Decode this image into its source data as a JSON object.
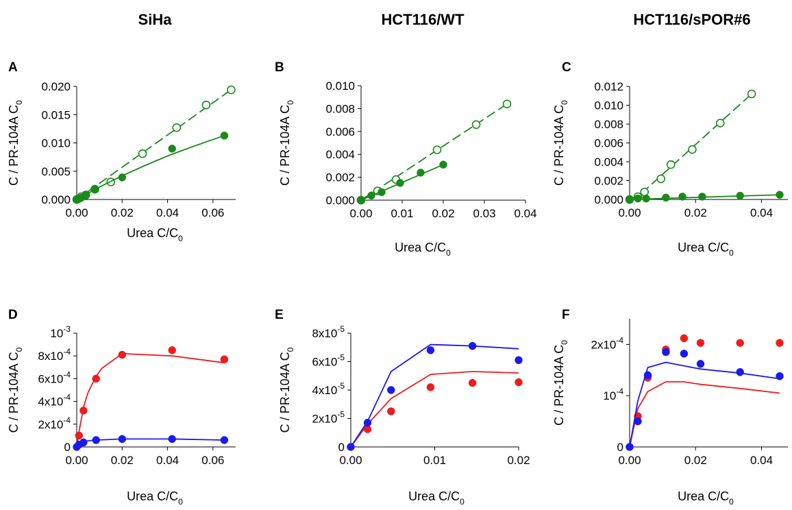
{
  "column_titles": [
    "SiHa",
    "HCT116/WT",
    "HCT116/sPOR#6"
  ],
  "colors": {
    "green": "#1a8a1a",
    "red": "#ee1c1c",
    "blue": "#1a1aee"
  },
  "chart_data": [
    {
      "id": "A",
      "type": "scatter",
      "title": "SiHa",
      "xlabel_main": "Urea C/C",
      "xlabel_sub": "0",
      "ylabel_main": "C / PR-104A C",
      "ylabel_sub": "0",
      "xlim": [
        0,
        0.07
      ],
      "ylim": [
        0,
        0.02
      ],
      "xticks": [
        0,
        0.02,
        0.04,
        0.06
      ],
      "xtick_labels": [
        "0.00",
        "0.02",
        "0.04",
        "0.06"
      ],
      "yticks": [
        0,
        0.005,
        0.01,
        0.015,
        0.02
      ],
      "ytick_labels": [
        "0.000",
        "0.005",
        "0.010",
        "0.015",
        "0.020"
      ],
      "series": [
        {
          "name": "open",
          "marker": "open",
          "color": "green",
          "line": "dashed",
          "x": [
            0.0,
            0.002,
            0.004,
            0.008,
            0.015,
            0.029,
            0.044,
            0.057,
            0.068
          ],
          "y": [
            0.0,
            0.0005,
            0.0008,
            0.0018,
            0.0031,
            0.0081,
            0.0127,
            0.0167,
            0.0194
          ],
          "fit_x": [
            0.0,
            0.068
          ],
          "fit_y": [
            0.0,
            0.0194
          ]
        },
        {
          "name": "filled",
          "marker": "filled",
          "color": "green",
          "line": "solid",
          "x": [
            0.0,
            0.001,
            0.002,
            0.004,
            0.008,
            0.02,
            0.042,
            0.065
          ],
          "y": [
            0.0,
            0.0001,
            0.0003,
            0.0008,
            0.0018,
            0.0039,
            0.009,
            0.0113
          ],
          "fit_x": [
            0.0,
            0.01,
            0.02,
            0.03,
            0.04,
            0.05,
            0.065
          ],
          "fit_y": [
            0.0,
            0.0022,
            0.0042,
            0.006,
            0.0077,
            0.0092,
            0.0113
          ]
        }
      ]
    },
    {
      "id": "B",
      "type": "scatter",
      "title": "HCT116/WT",
      "xlabel_main": "Urea C/C",
      "xlabel_sub": "0",
      "ylabel_main": "C / PR-104A C",
      "ylabel_sub": "0",
      "xlim": [
        0,
        0.04
      ],
      "ylim": [
        0,
        0.01
      ],
      "xticks": [
        0,
        0.01,
        0.02,
        0.03,
        0.04
      ],
      "xtick_labels": [
        "0.00",
        "0.01",
        "0.02",
        "0.03",
        "0.04"
      ],
      "yticks": [
        0,
        0.002,
        0.004,
        0.006,
        0.008,
        0.01
      ],
      "ytick_labels": [
        "0.000",
        "0.002",
        "0.004",
        "0.006",
        "0.008",
        "0.010"
      ],
      "series": [
        {
          "name": "open",
          "marker": "open",
          "color": "green",
          "line": "dashed",
          "x": [
            0.0,
            0.004,
            0.0085,
            0.0185,
            0.028,
            0.0355
          ],
          "y": [
            0.0,
            0.0008,
            0.0018,
            0.0044,
            0.0066,
            0.0084
          ],
          "fit_x": [
            0.0,
            0.0355
          ],
          "fit_y": [
            0.0,
            0.0084
          ]
        },
        {
          "name": "filled",
          "marker": "filled",
          "color": "green",
          "line": "solid",
          "x": [
            0.0,
            0.0025,
            0.005,
            0.0095,
            0.0145,
            0.02
          ],
          "y": [
            0.0,
            0.0004,
            0.0007,
            0.0015,
            0.0024,
            0.0031
          ],
          "fit_x": [
            0.0,
            0.02
          ],
          "fit_y": [
            0.0,
            0.0031
          ]
        }
      ]
    },
    {
      "id": "C",
      "type": "scatter",
      "title": "HCT116/sPOR#6",
      "xlabel_main": "Urea C/C",
      "xlabel_sub": "0",
      "ylabel_main": "C / PR-104A C",
      "ylabel_sub": "0",
      "xlim": [
        0,
        0.048
      ],
      "ylim": [
        0,
        0.012
      ],
      "xticks": [
        0,
        0.02,
        0.04
      ],
      "xtick_labels": [
        "0.00",
        "0.02",
        "0.04"
      ],
      "yticks": [
        0,
        0.002,
        0.004,
        0.006,
        0.008,
        0.01,
        0.012
      ],
      "ytick_labels": [
        "0.000",
        "0.002",
        "0.004",
        "0.006",
        "0.008",
        "0.010",
        "0.012"
      ],
      "series": [
        {
          "name": "open",
          "marker": "open",
          "color": "green",
          "line": "dashed",
          "x": [
            0.0,
            0.0025,
            0.0045,
            0.0095,
            0.0125,
            0.019,
            0.0275,
            0.037
          ],
          "y": [
            0.0,
            0.0003,
            0.0008,
            0.0022,
            0.0037,
            0.0053,
            0.0081,
            0.0112
          ],
          "fit_x": [
            0.0,
            0.0025,
            0.037
          ],
          "fit_y": [
            0.0,
            0.0003,
            0.0112
          ]
        },
        {
          "name": "filled",
          "marker": "filled",
          "color": "green",
          "line": "solid",
          "x": [
            0.0,
            0.0025,
            0.005,
            0.011,
            0.016,
            0.022,
            0.0335,
            0.0455
          ],
          "y": [
            0.0,
            0.0001,
            0.0001,
            0.0002,
            0.0003,
            0.0003,
            0.0004,
            0.0005
          ],
          "fit_x": [
            0.0,
            0.0455
          ],
          "fit_y": [
            0.0,
            0.0005
          ]
        }
      ]
    },
    {
      "id": "D",
      "type": "scatter",
      "xlabel_main": "Urea C/C",
      "xlabel_sub": "0",
      "ylabel_main": "C / PR-104A C",
      "ylabel_sub": "0",
      "xlim": [
        0,
        0.07
      ],
      "ylim": [
        0,
        0.001
      ],
      "xticks": [
        0,
        0.02,
        0.04,
        0.06
      ],
      "xtick_labels": [
        "0.00",
        "0.02",
        "0.04",
        "0.06"
      ],
      "yticks": [
        0,
        0.0002,
        0.0004,
        0.0006,
        0.0008,
        0.001
      ],
      "ytick_labels": [
        {
          "m": "0",
          "e": ""
        },
        {
          "m": "2x10",
          "e": "-4"
        },
        {
          "m": "4x10",
          "e": "-4"
        },
        {
          "m": "6x10",
          "e": "-4"
        },
        {
          "m": "8x10",
          "e": "-4"
        },
        {
          "m": "10",
          "e": "-3"
        }
      ],
      "series": [
        {
          "name": "red",
          "marker": "filled",
          "color": "red",
          "line": "solid",
          "x": [
            0.001,
            0.003,
            0.0085,
            0.02,
            0.042,
            0.065
          ],
          "y": [
            0.0001,
            0.00032,
            0.0006,
            0.00081,
            0.00085,
            0.00077
          ],
          "fit_x": [
            0.0,
            0.001,
            0.003,
            0.005,
            0.0085,
            0.011,
            0.02,
            0.042,
            0.065
          ],
          "fit_y": [
            0.0,
            0.00013,
            0.00035,
            0.00048,
            0.00062,
            0.00069,
            0.00082,
            0.0008,
            0.00074
          ]
        },
        {
          "name": "blue",
          "marker": "filled",
          "color": "blue",
          "line": "solid",
          "x": [
            0.0,
            0.001,
            0.003,
            0.0085,
            0.02,
            0.042,
            0.065
          ],
          "y": [
            0.0,
            2e-05,
            4e-05,
            6e-05,
            7e-05,
            7e-05,
            6e-05
          ],
          "fit_x": [
            0.0,
            0.001,
            0.003,
            0.0085,
            0.02,
            0.042,
            0.065
          ],
          "fit_y": [
            0.0,
            3e-05,
            5e-05,
            6e-05,
            7e-05,
            7e-05,
            6e-05
          ]
        }
      ]
    },
    {
      "id": "E",
      "type": "scatter",
      "xlabel_main": "Urea C/C",
      "xlabel_sub": "0",
      "ylabel_main": "C / PR-104A C",
      "ylabel_sub": "0",
      "xlim": [
        0,
        0.02
      ],
      "ylim": [
        0,
        8e-05
      ],
      "xticks": [
        0,
        0.01,
        0.02
      ],
      "xtick_labels": [
        "0.00",
        "0.01",
        "0.02"
      ],
      "yticks": [
        0,
        2e-05,
        4e-05,
        6e-05,
        8e-05
      ],
      "ytick_labels": [
        {
          "m": "0",
          "e": ""
        },
        {
          "m": "2x10",
          "e": "-5"
        },
        {
          "m": "4x10",
          "e": "-5"
        },
        {
          "m": "6x10",
          "e": "-5"
        },
        {
          "m": "8x10",
          "e": "-5"
        }
      ],
      "series": [
        {
          "name": "red",
          "marker": "filled",
          "color": "red",
          "line": "solid",
          "x": [
            0.0,
            0.002,
            0.0048,
            0.0095,
            0.0145,
            0.02
          ],
          "y": [
            0.0,
            1.25e-05,
            2.5e-05,
            4.2e-05,
            4.5e-05,
            4.55e-05
          ],
          "fit_x": [
            0.0,
            0.002,
            0.0048,
            0.0095,
            0.0145,
            0.02
          ],
          "fit_y": [
            0.0,
            1.6e-05,
            3.4e-05,
            5.1e-05,
            5.3e-05,
            5.2e-05
          ]
        },
        {
          "name": "blue",
          "marker": "filled",
          "color": "blue",
          "line": "solid",
          "x": [
            0.0,
            0.002,
            0.0048,
            0.0095,
            0.0145,
            0.02
          ],
          "y": [
            0.0,
            1.7e-05,
            4e-05,
            6.8e-05,
            7.1e-05,
            6.1e-05
          ],
          "fit_x": [
            0.0,
            0.002,
            0.0048,
            0.0095,
            0.0145,
            0.02
          ],
          "fit_y": [
            0.0,
            1.8e-05,
            5.3e-05,
            7.2e-05,
            7.1e-05,
            6.9e-05
          ]
        }
      ]
    },
    {
      "id": "F",
      "type": "scatter",
      "xlabel_main": "Urea C/C",
      "xlabel_sub": "0",
      "ylabel_main": "C / PR-104A C",
      "ylabel_sub": "0",
      "xlim": [
        0,
        0.048
      ],
      "ylim": [
        0,
        0.00025
      ],
      "xticks": [
        0,
        0.02,
        0.04
      ],
      "xtick_labels": [
        "0.00",
        "0.02",
        "0.04"
      ],
      "yticks": [
        0,
        0.0001,
        0.0002
      ],
      "ytick_labels": [
        {
          "m": "0",
          "e": ""
        },
        {
          "m": "10",
          "e": "-4"
        },
        {
          "m": "2x10",
          "e": "-4"
        }
      ],
      "series": [
        {
          "name": "red",
          "marker": "filled",
          "color": "red",
          "line": "solid",
          "x": [
            0.0,
            0.0025,
            0.0055,
            0.011,
            0.0165,
            0.0215,
            0.0335,
            0.0455
          ],
          "y": [
            0.0,
            6e-05,
            0.000135,
            0.00019,
            0.000212,
            0.000203,
            0.000203,
            0.000203
          ],
          "fit_x": [
            0.0,
            0.0025,
            0.0055,
            0.011,
            0.0165,
            0.0215,
            0.0335,
            0.0455
          ],
          "fit_y": [
            0.0,
            7.5e-05,
            0.000108,
            0.000127,
            0.000127,
            0.000122,
            0.000114,
            0.000105
          ]
        },
        {
          "name": "blue",
          "marker": "filled",
          "color": "blue",
          "line": "solid",
          "x": [
            0.0,
            0.0025,
            0.0055,
            0.011,
            0.0165,
            0.0215,
            0.0335,
            0.0455
          ],
          "y": [
            0.0,
            5e-05,
            0.00014,
            0.000185,
            0.000182,
            0.000162,
            0.000146,
            0.000138
          ],
          "fit_x": [
            0.0,
            0.0025,
            0.0055,
            0.011,
            0.0165,
            0.0215,
            0.0335,
            0.0455
          ],
          "fit_y": [
            0.0,
            9e-05,
            0.000155,
            0.000165,
            0.000158,
            0.000152,
            0.000144,
            0.000133
          ]
        }
      ]
    }
  ]
}
